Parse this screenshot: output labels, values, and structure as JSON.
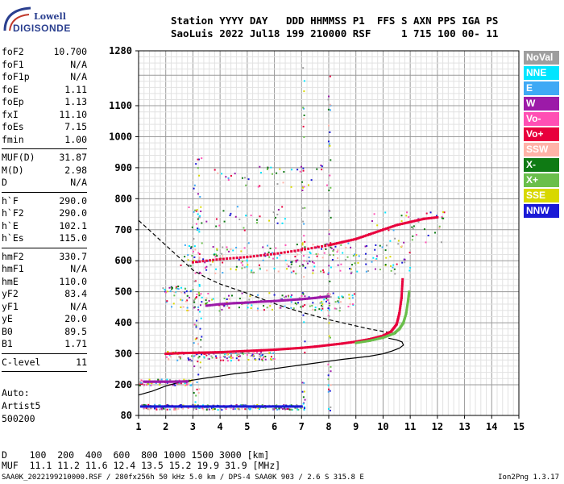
{
  "logo": {
    "line1": "Lowell",
    "line2": "DIGISONDE"
  },
  "header": {
    "row1": "Station YYYY DAY   DDD HHMMSS P1  FFS S AXN PPS IGA PS",
    "row2": "SaoLuis 2022 Jul18 199 210000 RSF     1 715 100 00- 11"
  },
  "params": [
    {
      "k": "foF2",
      "v": "10.700"
    },
    {
      "k": "foF1",
      "v": "N/A"
    },
    {
      "k": "foF1p",
      "v": "N/A"
    },
    {
      "k": "foE",
      "v": "1.11"
    },
    {
      "k": "foEp",
      "v": "1.13"
    },
    {
      "k": "fxI",
      "v": "11.10"
    },
    {
      "k": "foEs",
      "v": "7.15"
    },
    {
      "k": "fmin",
      "v": "1.00"
    },
    {
      "sep": true
    },
    {
      "k": "MUF(D)",
      "v": "31.87"
    },
    {
      "k": "M(D)",
      "v": "2.98"
    },
    {
      "k": "D",
      "v": "N/A"
    },
    {
      "sep": true
    },
    {
      "k": "h`F",
      "v": "290.0"
    },
    {
      "k": "h`F2",
      "v": "290.0"
    },
    {
      "k": "h`E",
      "v": "102.1"
    },
    {
      "k": "h`Es",
      "v": "115.0"
    },
    {
      "sep": true
    },
    {
      "k": "hmF2",
      "v": "330.7"
    },
    {
      "k": "hmF1",
      "v": "N/A"
    },
    {
      "k": "hmE",
      "v": "110.0"
    },
    {
      "k": "yF2",
      "v": "83.4"
    },
    {
      "k": "yF1",
      "v": "N/A"
    },
    {
      "k": "yE",
      "v": "20.0"
    },
    {
      "k": "B0",
      "v": "89.5"
    },
    {
      "k": "B1",
      "v": "1.71"
    },
    {
      "sep": true
    },
    {
      "k": "C-level",
      "v": "11"
    },
    {
      "sep": true
    }
  ],
  "auto": {
    "line1": "Auto:",
    "line2": "Artist5",
    "line3": "500200"
  },
  "legend": [
    {
      "label": "NoVal",
      "color": "#9e9e9e"
    },
    {
      "label": "NNE",
      "color": "#00e5ff"
    },
    {
      "label": "E",
      "color": "#3fa9f5"
    },
    {
      "label": "W",
      "color": "#9c1aa8"
    },
    {
      "label": "Vo-",
      "color": "#ff4fb4"
    },
    {
      "label": "Vo+",
      "color": "#e8003c"
    },
    {
      "label": "SSW",
      "color": "#ffb3a8"
    },
    {
      "label": "X-",
      "color": "#0f7a14"
    },
    {
      "label": "X+",
      "color": "#6abf4b"
    },
    {
      "label": "SSE",
      "color": "#d8d800"
    },
    {
      "label": "NNW",
      "color": "#1a1ad6"
    }
  ],
  "footer": {
    "row1": "D    100  200  400  600  800 1000 1500 3000 [km]",
    "row2": "MUF  11.1 11.2 11.6 12.4 13.5 15.2 19.9 31.9 [MHz]",
    "source": "SAA0K_2022199210000.RSF / 280fx256h 50 kHz 5.0 km / DPS-4 SAA0K 903 / 2.6 S 315.8 E",
    "version": "Ion2Png 1.3.17"
  },
  "chart_data": {
    "type": "scatter",
    "xlim": [
      1,
      15
    ],
    "ylim": [
      80,
      1280
    ],
    "x_ticks": [
      1,
      2,
      3,
      4,
      5,
      6,
      7,
      8,
      9,
      10,
      11,
      12,
      13,
      14,
      15
    ],
    "y_ticks": [
      80,
      200,
      300,
      400,
      500,
      600,
      700,
      800,
      900,
      1000,
      1100,
      1280
    ],
    "grid": true,
    "series": [
      {
        "color": "#e8003c",
        "points": [
          [
            2.0,
            300
          ],
          [
            2.5,
            302
          ],
          [
            3.0,
            303
          ],
          [
            3.5,
            304
          ],
          [
            4.0,
            305
          ],
          [
            4.5,
            307
          ],
          [
            5.0,
            309
          ],
          [
            5.5,
            311
          ],
          [
            6.0,
            313
          ],
          [
            6.5,
            316
          ],
          [
            7.0,
            319
          ],
          [
            7.5,
            323
          ],
          [
            8.0,
            328
          ],
          [
            8.5,
            333
          ],
          [
            9.0,
            339
          ],
          [
            9.5,
            347
          ],
          [
            10.0,
            358
          ],
          [
            10.3,
            372
          ],
          [
            10.5,
            395
          ],
          [
            10.6,
            430
          ],
          [
            10.68,
            480
          ],
          [
            10.72,
            540
          ]
        ]
      },
      {
        "color": "#6abf4b",
        "points": [
          [
            9.0,
            335
          ],
          [
            9.5,
            342
          ],
          [
            10.0,
            352
          ],
          [
            10.4,
            365
          ],
          [
            10.6,
            380
          ],
          [
            10.75,
            400
          ],
          [
            10.85,
            430
          ],
          [
            10.92,
            470
          ],
          [
            10.96,
            500
          ]
        ]
      },
      {
        "color": "#e8003c",
        "points": [
          [
            3.0,
            595
          ],
          [
            4.0,
            605
          ],
          [
            5.0,
            612
          ],
          [
            6.0,
            622
          ],
          [
            7.0,
            635
          ],
          [
            8.0,
            650
          ],
          [
            8.5,
            660
          ],
          [
            9.0,
            670
          ],
          [
            9.5,
            685
          ],
          [
            10.0,
            700
          ],
          [
            10.5,
            715
          ],
          [
            11.0,
            725
          ],
          [
            11.5,
            735
          ],
          [
            12.0,
            740
          ]
        ]
      },
      {
        "color": "#9c1aa8",
        "points": [
          [
            3.5,
            455
          ],
          [
            4.0,
            460
          ],
          [
            4.5,
            463
          ],
          [
            5.0,
            465
          ],
          [
            5.5,
            468
          ],
          [
            6.0,
            470
          ],
          [
            6.5,
            473
          ],
          [
            7.0,
            476
          ],
          [
            7.5,
            480
          ],
          [
            8.0,
            485
          ]
        ]
      },
      {
        "color": "#9c1aa8",
        "points": [
          [
            1.2,
            210
          ],
          [
            1.6,
            210
          ],
          [
            2.0,
            210
          ],
          [
            2.4,
            210
          ],
          [
            2.8,
            211
          ]
        ]
      },
      {
        "color": "#1a1ad6",
        "points": [
          [
            1.1,
            115
          ],
          [
            1.6,
            115
          ],
          [
            2.0,
            115
          ],
          [
            2.5,
            115
          ],
          [
            3.0,
            115
          ],
          [
            3.5,
            115
          ],
          [
            4.0,
            115
          ],
          [
            4.5,
            115
          ],
          [
            5.0,
            115
          ],
          [
            5.5,
            115
          ],
          [
            6.0,
            115
          ],
          [
            6.5,
            115
          ],
          [
            7.0,
            115
          ]
        ]
      }
    ],
    "lines": [
      {
        "style": "solid",
        "points": [
          [
            1.0,
            160
          ],
          [
            1.5,
            175
          ],
          [
            2.0,
            195
          ],
          [
            2.5,
            208
          ],
          [
            3.0,
            215
          ],
          [
            3.5,
            222
          ],
          [
            4.0,
            228
          ],
          [
            4.5,
            235
          ],
          [
            5.0,
            240
          ],
          [
            5.5,
            246
          ],
          [
            6.0,
            252
          ],
          [
            6.5,
            258
          ],
          [
            7.0,
            264
          ],
          [
            7.5,
            270
          ],
          [
            8.0,
            276
          ],
          [
            8.5,
            282
          ],
          [
            9.0,
            287
          ],
          [
            9.5,
            292
          ],
          [
            10.0,
            300
          ],
          [
            10.3,
            308
          ],
          [
            10.6,
            318
          ],
          [
            10.75,
            328
          ],
          [
            10.7,
            338
          ],
          [
            10.5,
            345
          ],
          [
            10.2,
            350
          ]
        ]
      },
      {
        "style": "dashed",
        "points": [
          [
            1.0,
            730
          ],
          [
            1.5,
            690
          ],
          [
            2.0,
            650
          ],
          [
            2.5,
            610
          ],
          [
            3.0,
            570
          ],
          [
            3.5,
            545
          ],
          [
            4.0,
            525
          ],
          [
            4.5,
            510
          ],
          [
            5.0,
            495
          ],
          [
            5.5,
            478
          ],
          [
            6.0,
            462
          ],
          [
            6.5,
            447
          ],
          [
            7.0,
            434
          ],
          [
            7.5,
            422
          ],
          [
            8.0,
            410
          ],
          [
            8.5,
            400
          ],
          [
            9.0,
            390
          ],
          [
            9.5,
            380
          ],
          [
            10.0,
            372
          ],
          [
            10.5,
            365
          ]
        ]
      }
    ]
  }
}
